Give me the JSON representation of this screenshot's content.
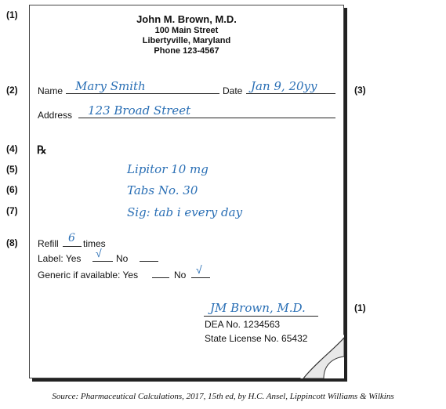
{
  "markers": {
    "m1_top": "(1)",
    "m2": "(2)",
    "m3": "(3)",
    "m4": "(4)",
    "m5": "(5)",
    "m6": "(6)",
    "m7": "(7)",
    "m8": "(8)",
    "m1_bottom": "(1)"
  },
  "prescriber": {
    "name": "John M. Brown, M.D.",
    "street": "100 Main Street",
    "city": "Libertyville, Maryland",
    "phone": "Phone 123-4567"
  },
  "patient": {
    "name_label": "Name",
    "name_value": "Mary Smith",
    "date_label": "Date",
    "date_value": "Jan 9, 20yy",
    "address_label": "Address",
    "address_value": "123 Broad Street"
  },
  "rx_symbol": "℞",
  "medication": {
    "drug": "Lipitor 10 mg",
    "quantity": "Tabs No. 30",
    "sig": "Sig: tab i every day"
  },
  "refill": {
    "label": "Refill",
    "value": "6",
    "suffix": "times"
  },
  "label_row": {
    "label": "Label: Yes",
    "yes_mark": "√",
    "no_label": "No"
  },
  "generic_row": {
    "label": "Generic if available: Yes",
    "no_label": "No",
    "no_mark": "√"
  },
  "signature": {
    "value": "JM Brown, M.D.",
    "dea": "DEA No. 1234563",
    "license": "State License No. 65432"
  },
  "source": "Source: Pharmaceutical Calculations, 2017, 15th ed, by H.C. Ansel, Lippincott Williams & Wilkins",
  "colors": {
    "handwriting": "#2a6fb5"
  }
}
